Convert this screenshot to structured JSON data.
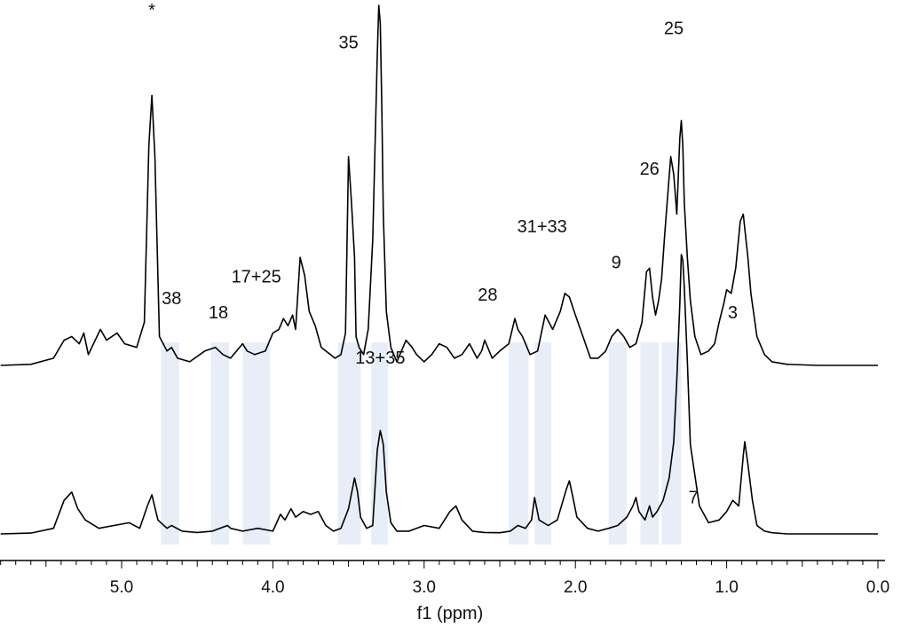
{
  "chart_data": {
    "type": "line",
    "title": "",
    "xlabel": "f1 (ppm)",
    "ylabel": "",
    "xlim": [
      5.85,
      0.0
    ],
    "x_reversed": true,
    "x_ticks": [
      "5.0",
      "4.0",
      "3.0",
      "2.0",
      "1.0",
      "0.0"
    ],
    "colors": {
      "trace": "#000000",
      "highlight": "#dfe8f5"
    },
    "highlight_bands": [
      {
        "label": "38",
        "from": 4.74,
        "to": 4.62
      },
      {
        "label": "18",
        "from": 4.41,
        "to": 4.29
      },
      {
        "label": "17+25",
        "from": 4.2,
        "to": 4.02
      },
      {
        "label": "35",
        "from": 3.57,
        "to": 3.42
      },
      {
        "label": "",
        "from": 3.35,
        "to": 3.24
      },
      {
        "label": "28",
        "from": 2.44,
        "to": 2.31
      },
      {
        "label": "31+33",
        "from": 2.27,
        "to": 2.16
      },
      {
        "label": "9",
        "from": 1.78,
        "to": 1.66
      },
      {
        "label": "26",
        "from": 1.57,
        "to": 1.45
      },
      {
        "label": "25",
        "from": 1.43,
        "to": 1.3
      }
    ],
    "annotations": [
      {
        "text": "*",
        "x": 4.8,
        "series": "upper",
        "y": 0.97
      },
      {
        "text": "38",
        "x": 4.67,
        "series": "upper",
        "y": 0.17
      },
      {
        "text": "18",
        "x": 4.36,
        "series": "upper",
        "y": 0.13
      },
      {
        "text": "17+25",
        "x": 4.11,
        "series": "upper",
        "y": 0.23
      },
      {
        "text": "35",
        "x": 3.5,
        "series": "upper",
        "y": 0.88
      },
      {
        "text": "28",
        "x": 2.58,
        "series": "upper",
        "y": 0.18
      },
      {
        "text": "31+33",
        "x": 2.22,
        "series": "upper",
        "y": 0.37
      },
      {
        "text": "9",
        "x": 1.73,
        "series": "upper",
        "y": 0.27
      },
      {
        "text": "26",
        "x": 1.51,
        "series": "upper",
        "y": 0.53
      },
      {
        "text": "25",
        "x": 1.35,
        "series": "upper",
        "y": 0.92
      },
      {
        "text": "3",
        "x": 0.96,
        "series": "upper",
        "y": 0.13
      },
      {
        "text": "13+35",
        "x": 3.29,
        "series": "lower",
        "y": 0.61
      },
      {
        "text": "7",
        "x": 1.22,
        "series": "lower",
        "y": 0.11
      }
    ],
    "series": [
      {
        "name": "upper",
        "baseline": 0.0,
        "x": [
          5.8,
          5.6,
          5.45,
          5.38,
          5.33,
          5.28,
          5.25,
          5.22,
          5.14,
          5.1,
          5.03,
          4.98,
          4.9,
          4.85,
          4.82,
          4.8,
          4.78,
          4.75,
          4.7,
          4.67,
          4.63,
          4.55,
          4.45,
          4.38,
          4.33,
          4.28,
          4.2,
          4.17,
          4.12,
          4.05,
          4.0,
          3.96,
          3.93,
          3.9,
          3.87,
          3.85,
          3.82,
          3.79,
          3.76,
          3.72,
          3.68,
          3.62,
          3.59,
          3.55,
          3.52,
          3.5,
          3.48,
          3.46,
          3.45,
          3.43,
          3.4,
          3.37,
          3.34,
          3.31,
          3.3,
          3.29,
          3.28,
          3.27,
          3.25,
          3.22,
          3.18,
          3.12,
          3.08,
          3.05,
          3.0,
          2.95,
          2.9,
          2.85,
          2.8,
          2.75,
          2.7,
          2.65,
          2.62,
          2.6,
          2.55,
          2.5,
          2.44,
          2.4,
          2.38,
          2.35,
          2.3,
          2.25,
          2.2,
          2.15,
          2.1,
          2.07,
          2.04,
          2.0,
          1.95,
          1.9,
          1.85,
          1.8,
          1.76,
          1.72,
          1.68,
          1.64,
          1.6,
          1.56,
          1.53,
          1.51,
          1.49,
          1.47,
          1.45,
          1.43,
          1.41,
          1.39,
          1.37,
          1.35,
          1.33,
          1.31,
          1.3,
          1.29,
          1.28,
          1.26,
          1.24,
          1.21,
          1.17,
          1.12,
          1.08,
          1.05,
          1.02,
          1.0,
          0.97,
          0.94,
          0.91,
          0.89,
          0.88,
          0.86,
          0.84,
          0.8,
          0.75,
          0.7,
          0.6,
          0.4,
          0.2,
          0.0
        ],
        "y": [
          0.0,
          0.003,
          0.02,
          0.07,
          0.08,
          0.06,
          0.09,
          0.03,
          0.1,
          0.07,
          0.09,
          0.06,
          0.05,
          0.12,
          0.61,
          0.75,
          0.58,
          0.08,
          0.04,
          0.05,
          0.02,
          0.01,
          0.04,
          0.05,
          0.03,
          0.02,
          0.06,
          0.04,
          0.03,
          0.04,
          0.09,
          0.1,
          0.13,
          0.11,
          0.14,
          0.1,
          0.3,
          0.25,
          0.15,
          0.11,
          0.05,
          0.03,
          0.02,
          0.03,
          0.09,
          0.58,
          0.45,
          0.3,
          0.08,
          0.05,
          0.03,
          0.1,
          0.35,
          0.86,
          1.0,
          0.95,
          0.72,
          0.42,
          0.15,
          0.05,
          0.01,
          0.07,
          0.05,
          0.03,
          0.01,
          0.03,
          0.06,
          0.05,
          0.02,
          0.03,
          0.06,
          0.02,
          0.04,
          0.07,
          0.02,
          0.04,
          0.06,
          0.13,
          0.1,
          0.08,
          0.03,
          0.04,
          0.14,
          0.1,
          0.15,
          0.2,
          0.19,
          0.14,
          0.08,
          0.02,
          0.02,
          0.04,
          0.08,
          0.1,
          0.08,
          0.05,
          0.06,
          0.12,
          0.26,
          0.27,
          0.19,
          0.14,
          0.18,
          0.24,
          0.36,
          0.47,
          0.58,
          0.53,
          0.42,
          0.63,
          0.68,
          0.61,
          0.45,
          0.3,
          0.18,
          0.08,
          0.03,
          0.04,
          0.06,
          0.12,
          0.17,
          0.21,
          0.2,
          0.27,
          0.4,
          0.42,
          0.38,
          0.3,
          0.2,
          0.08,
          0.03,
          0.01,
          0.003,
          0.0,
          0.0,
          0.0
        ]
      },
      {
        "name": "lower",
        "baseline": 0.0,
        "x": [
          5.8,
          5.6,
          5.45,
          5.38,
          5.33,
          5.29,
          5.24,
          5.15,
          5.05,
          4.95,
          4.88,
          4.83,
          4.8,
          4.76,
          4.7,
          4.67,
          4.6,
          4.5,
          4.4,
          4.3,
          4.28,
          4.2,
          4.1,
          4.0,
          3.95,
          3.92,
          3.88,
          3.85,
          3.8,
          3.75,
          3.7,
          3.65,
          3.6,
          3.55,
          3.5,
          3.46,
          3.44,
          3.42,
          3.38,
          3.34,
          3.31,
          3.29,
          3.27,
          3.25,
          3.22,
          3.18,
          3.1,
          3.0,
          2.9,
          2.83,
          2.79,
          2.75,
          2.68,
          2.6,
          2.5,
          2.43,
          2.38,
          2.33,
          2.29,
          2.27,
          2.24,
          2.18,
          2.12,
          2.06,
          2.04,
          2.02,
          1.99,
          1.92,
          1.85,
          1.78,
          1.72,
          1.66,
          1.62,
          1.6,
          1.58,
          1.54,
          1.51,
          1.49,
          1.46,
          1.42,
          1.38,
          1.35,
          1.33,
          1.31,
          1.3,
          1.29,
          1.28,
          1.26,
          1.24,
          1.18,
          1.12,
          1.05,
          1.0,
          0.96,
          0.92,
          0.89,
          0.88,
          0.86,
          0.83,
          0.8,
          0.75,
          0.7,
          0.6,
          0.4,
          0.2,
          0.0
        ],
        "y": [
          0.0,
          0.003,
          0.02,
          0.12,
          0.15,
          0.09,
          0.05,
          0.02,
          0.03,
          0.04,
          0.02,
          0.1,
          0.14,
          0.05,
          0.02,
          0.03,
          0.01,
          0.005,
          0.01,
          0.03,
          0.02,
          0.01,
          0.02,
          0.01,
          0.07,
          0.05,
          0.09,
          0.06,
          0.08,
          0.07,
          0.08,
          0.03,
          0.01,
          0.02,
          0.09,
          0.2,
          0.15,
          0.06,
          0.02,
          0.03,
          0.3,
          0.37,
          0.32,
          0.15,
          0.04,
          0.01,
          0.01,
          0.03,
          0.02,
          0.08,
          0.1,
          0.05,
          0.01,
          0.005,
          0.004,
          0.01,
          0.03,
          0.02,
          0.05,
          0.13,
          0.05,
          0.03,
          0.05,
          0.16,
          0.19,
          0.14,
          0.06,
          0.02,
          0.01,
          0.02,
          0.03,
          0.06,
          0.1,
          0.13,
          0.08,
          0.05,
          0.1,
          0.06,
          0.08,
          0.12,
          0.2,
          0.33,
          0.55,
          0.82,
          1.0,
          0.98,
          0.88,
          0.62,
          0.32,
          0.1,
          0.04,
          0.05,
          0.08,
          0.12,
          0.1,
          0.28,
          0.33,
          0.25,
          0.12,
          0.03,
          0.01,
          0.004,
          0.0,
          0.0,
          0.0,
          0.0
        ]
      }
    ]
  }
}
